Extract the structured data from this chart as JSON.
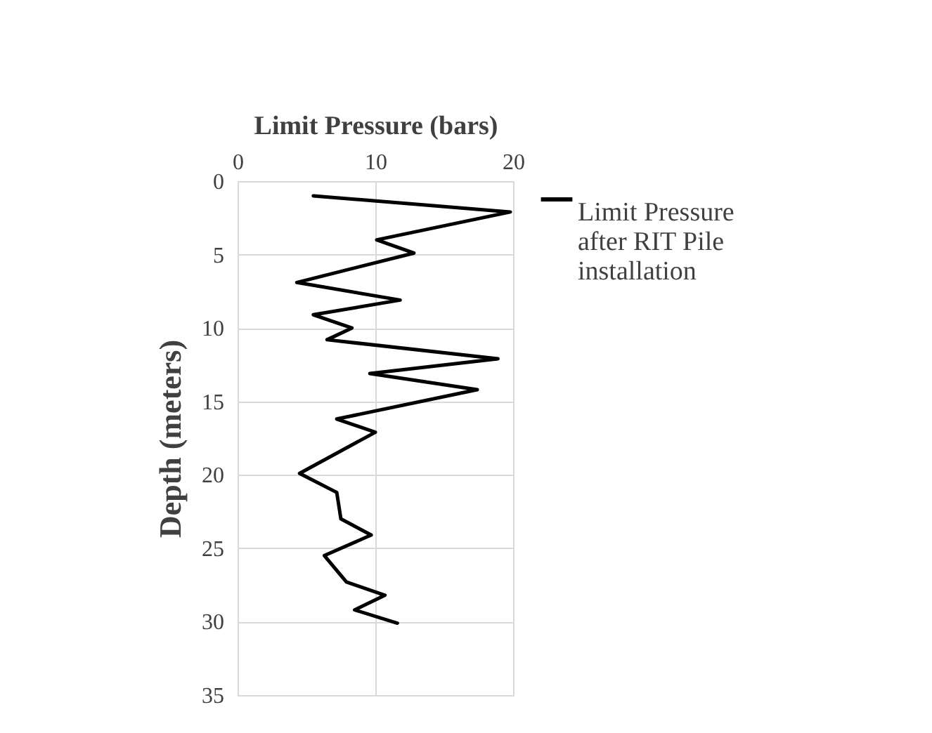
{
  "chart_data": {
    "type": "line",
    "xlabel": "Limit Pressure (bars)",
    "ylabel": "Depth (meters)",
    "series": [
      {
        "name": "Limit Pressure after RIT Pile installation",
        "color": "#000000",
        "x": [
          5.5,
          19.8,
          10.1,
          12.8,
          4.3,
          11.8,
          5.5,
          8.3,
          6.5,
          18.9,
          9.6,
          17.4,
          7.2,
          10.0,
          4.5,
          7.2,
          7.5,
          9.7,
          6.3,
          7.9,
          10.7,
          8.5,
          11.6
        ],
        "values": [
          1.0,
          2.1,
          4.0,
          4.9,
          6.9,
          8.1,
          9.1,
          10.0,
          10.8,
          12.1,
          13.1,
          14.2,
          16.2,
          17.1,
          19.9,
          21.2,
          23.0,
          24.1,
          25.5,
          27.3,
          28.2,
          29.2,
          30.1
        ]
      }
    ],
    "xlim": [
      0,
      20
    ],
    "xticks": [
      0,
      10,
      20
    ],
    "ylim": [
      35,
      0
    ],
    "yticks": [
      0,
      5,
      10,
      15,
      20,
      25,
      30,
      35
    ],
    "grid": true,
    "legend": "right",
    "marker": "none",
    "line_style": "solid"
  }
}
